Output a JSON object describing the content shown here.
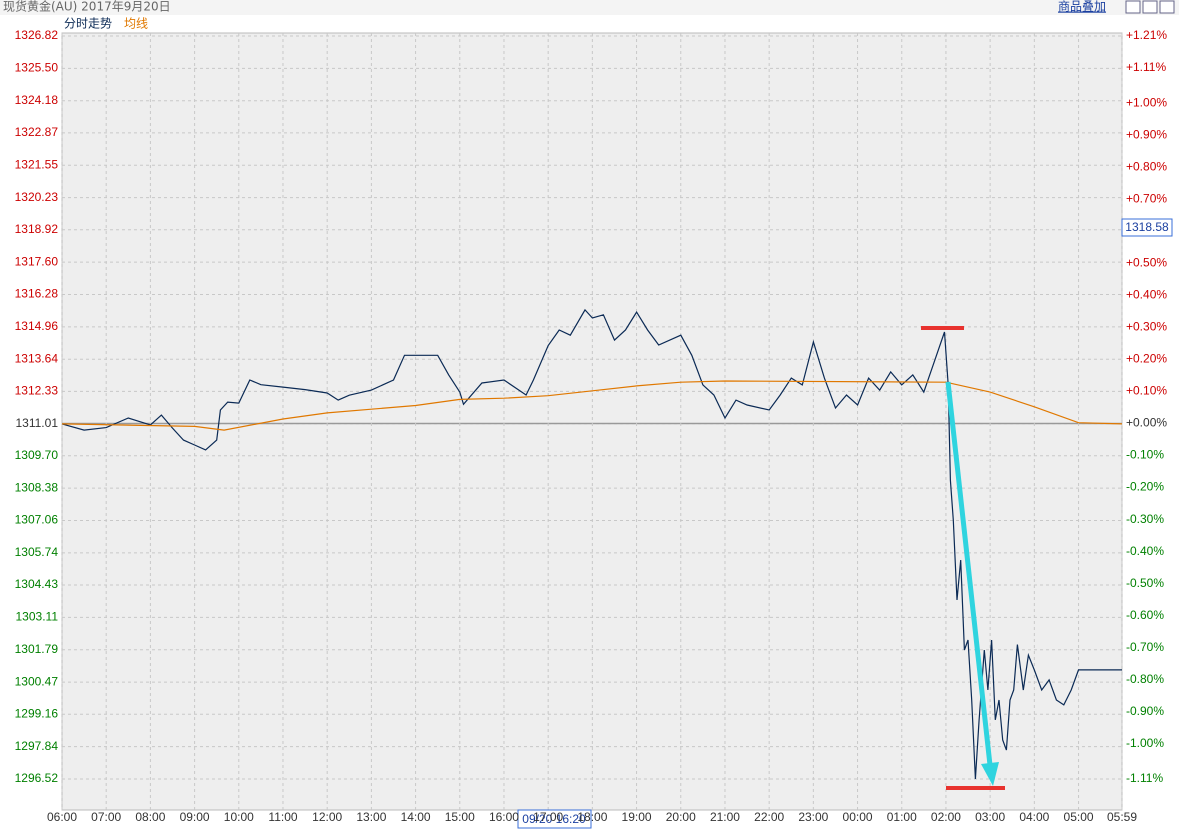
{
  "header": {
    "title": "现货黄金(AU)  2017年9月20日",
    "overlay_button": "商品叠加"
  },
  "cursor": {
    "price_label": "1318.58",
    "time_label": "09/20 16:20"
  },
  "chart_data": {
    "type": "line",
    "xlim": [
      0,
      1439
    ],
    "xticks": [
      {
        "value": 0,
        "label": "06:00"
      },
      {
        "value": 60,
        "label": "07:00"
      },
      {
        "value": 120,
        "label": "08:00"
      },
      {
        "value": 180,
        "label": "09:00"
      },
      {
        "value": 240,
        "label": "10:00"
      },
      {
        "value": 300,
        "label": "11:00"
      },
      {
        "value": 360,
        "label": "12:00"
      },
      {
        "value": 420,
        "label": "13:00"
      },
      {
        "value": 480,
        "label": "14:00"
      },
      {
        "value": 540,
        "label": "15:00"
      },
      {
        "value": 600,
        "label": "16:00"
      },
      {
        "value": 660,
        "label": "17:00"
      },
      {
        "value": 720,
        "label": "18:00"
      },
      {
        "value": 780,
        "label": "19:00"
      },
      {
        "value": 840,
        "label": "20:00"
      },
      {
        "value": 900,
        "label": "21:00"
      },
      {
        "value": 960,
        "label": "22:00"
      },
      {
        "value": 1020,
        "label": "23:00"
      },
      {
        "value": 1080,
        "label": "00:00"
      },
      {
        "value": 1140,
        "label": "01:00"
      },
      {
        "value": 1200,
        "label": "02:00"
      },
      {
        "value": 1260,
        "label": "03:00"
      },
      {
        "value": 1320,
        "label": "04:00"
      },
      {
        "value": 1380,
        "label": "05:00"
      },
      {
        "value": 1439,
        "label": "05:59"
      }
    ],
    "ylim": [
      1296.52,
      1326.82
    ],
    "yticks": [
      1326.82,
      {
        "value": 1325.5,
        "label": "1325.50"
      },
      1324.18,
      1322.87,
      1321.55,
      1320.23,
      1318.92,
      {
        "value": 1317.6,
        "label": "1317.60"
      },
      1316.28,
      1314.96,
      1313.64,
      1312.33,
      1311.01,
      {
        "value": 1309.7,
        "label": "1309.70"
      },
      1308.38,
      1307.06,
      1305.74,
      1304.43,
      1303.11,
      1301.79,
      1300.47,
      1299.16,
      1297.84,
      1296.52
    ],
    "y2lim": [
      -1.11,
      1.21
    ],
    "y2ticks": [
      {
        "value": 1.21,
        "label": "+1.21%"
      },
      {
        "value": 1.11,
        "label": "+1.11%"
      },
      {
        "value": 1,
        "label": "+1.00%"
      },
      {
        "value": 0.9,
        "label": "+0.90%"
      },
      {
        "value": 0.8,
        "label": "+0.80%"
      },
      {
        "value": 0.7,
        "label": "+0.70%"
      },
      {
        "value": 0.5,
        "label": "+0.50%"
      },
      {
        "value": 0.4,
        "label": "+0.40%"
      },
      {
        "value": 0.3,
        "label": "+0.30%"
      },
      {
        "value": 0.2,
        "label": "+0.20%"
      },
      {
        "value": 0.1,
        "label": "+0.10%"
      },
      {
        "value": 0,
        "label": "+0.00%"
      },
      {
        "value": -0.1,
        "label": "-0.10%"
      },
      {
        "value": -0.2,
        "label": "-0.20%"
      },
      {
        "value": -0.3,
        "label": "-0.30%"
      },
      {
        "value": -0.4,
        "label": "-0.40%"
      },
      {
        "value": -0.5,
        "label": "-0.50%"
      },
      {
        "value": -0.6,
        "label": "-0.60%"
      },
      {
        "value": -0.7,
        "label": "-0.70%"
      },
      {
        "value": -0.8,
        "label": "-0.80%"
      },
      {
        "value": -0.9,
        "label": "-0.90%"
      },
      {
        "value": -1,
        "label": "-1.00%"
      },
      {
        "value": -1.11,
        "label": "-1.11%"
      }
    ],
    "grid": true,
    "up_color": "#cc0000",
    "down_color": "#008000",
    "flat_color": "#333333",
    "series": [
      {
        "name": "分时走势",
        "color": "#0b2a55",
        "x": [
          0,
          30,
          60,
          90,
          120,
          135,
          150,
          165,
          180,
          195,
          210,
          215,
          225,
          240,
          255,
          270,
          300,
          330,
          360,
          375,
          390,
          420,
          450,
          465,
          480,
          510,
          525,
          540,
          545,
          570,
          600,
          630,
          640,
          660,
          675,
          690,
          710,
          720,
          735,
          750,
          765,
          780,
          795,
          810,
          840,
          855,
          870,
          885,
          900,
          915,
          930,
          960,
          975,
          990,
          1005,
          1020,
          1035,
          1050,
          1065,
          1080,
          1095,
          1110,
          1125,
          1140,
          1155,
          1170,
          1185,
          1198,
          1203,
          1206,
          1210,
          1215,
          1220,
          1225,
          1230,
          1235,
          1240,
          1245,
          1252,
          1257,
          1262,
          1267,
          1272,
          1277,
          1282,
          1287,
          1292,
          1297,
          1305,
          1312,
          1320,
          1330,
          1340,
          1350,
          1360,
          1370,
          1380,
          1439
        ],
        "values": [
          1311.0,
          1310.75,
          1310.85,
          1311.24,
          1310.96,
          1311.36,
          1310.83,
          1310.34,
          1310.14,
          1309.94,
          1310.34,
          1311.57,
          1311.89,
          1311.85,
          1312.79,
          1312.6,
          1312.5,
          1312.4,
          1312.26,
          1311.97,
          1312.17,
          1312.38,
          1312.79,
          1313.8,
          1313.8,
          1313.8,
          1313.0,
          1312.3,
          1311.8,
          1312.67,
          1312.79,
          1312.18,
          1312.79,
          1314.2,
          1314.83,
          1314.62,
          1315.65,
          1315.32,
          1315.45,
          1314.42,
          1314.83,
          1315.56,
          1314.83,
          1314.22,
          1314.62,
          1313.8,
          1312.59,
          1312.18,
          1311.24,
          1311.97,
          1311.77,
          1311.57,
          1312.18,
          1312.87,
          1312.59,
          1314.34,
          1312.87,
          1311.65,
          1312.18,
          1311.77,
          1312.87,
          1312.38,
          1313.12,
          1312.59,
          1313.0,
          1312.3,
          1313.61,
          1314.75,
          1312.59,
          1308.7,
          1307.08,
          1303.82,
          1305.45,
          1301.78,
          1302.19,
          1299.74,
          1296.52,
          1298.93,
          1301.78,
          1300.15,
          1302.19,
          1298.93,
          1299.74,
          1298.11,
          1297.7,
          1299.74,
          1300.15,
          1302.0,
          1300.15,
          1301.57,
          1300.97,
          1300.15,
          1300.56,
          1299.74,
          1299.54,
          1300.15,
          1300.97,
          1300.97
        ]
      },
      {
        "name": "均线",
        "color": "#e07800",
        "x": [
          0,
          180,
          220,
          300,
          360,
          420,
          480,
          540,
          600,
          660,
          720,
          780,
          840,
          900,
          1200,
          1260,
          1320,
          1380,
          1439
        ],
        "values": [
          1311.0,
          1310.9,
          1310.75,
          1311.2,
          1311.45,
          1311.6,
          1311.75,
          1312.0,
          1312.05,
          1312.15,
          1312.35,
          1312.55,
          1312.7,
          1312.75,
          1312.7,
          1312.3,
          1311.7,
          1311.05,
          1311.0
        ]
      }
    ]
  }
}
